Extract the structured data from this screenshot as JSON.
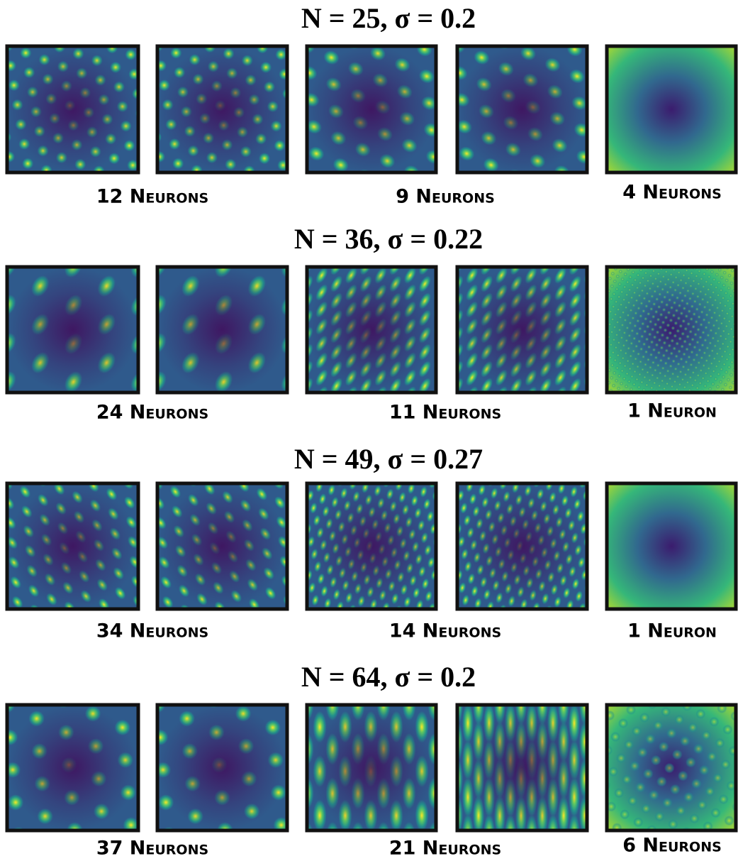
{
  "rows": [
    {
      "title": "N = 25, σ = 0.2",
      "labels": [
        "12 Neurons",
        "9 Neurons",
        "4 Neurons"
      ]
    },
    {
      "title": "N = 36, σ = 0.22",
      "labels": [
        "24 Neurons",
        "11 Neurons",
        "1 Neuron"
      ]
    },
    {
      "title": "N = 49, σ = 0.27",
      "labels": [
        "34 Neurons",
        "14 Neurons",
        "1 Neuron"
      ]
    },
    {
      "title": "N = 64, σ = 0.2",
      "labels": [
        "37 Neurons",
        "21 Neurons",
        "6 Neurons"
      ]
    }
  ]
}
